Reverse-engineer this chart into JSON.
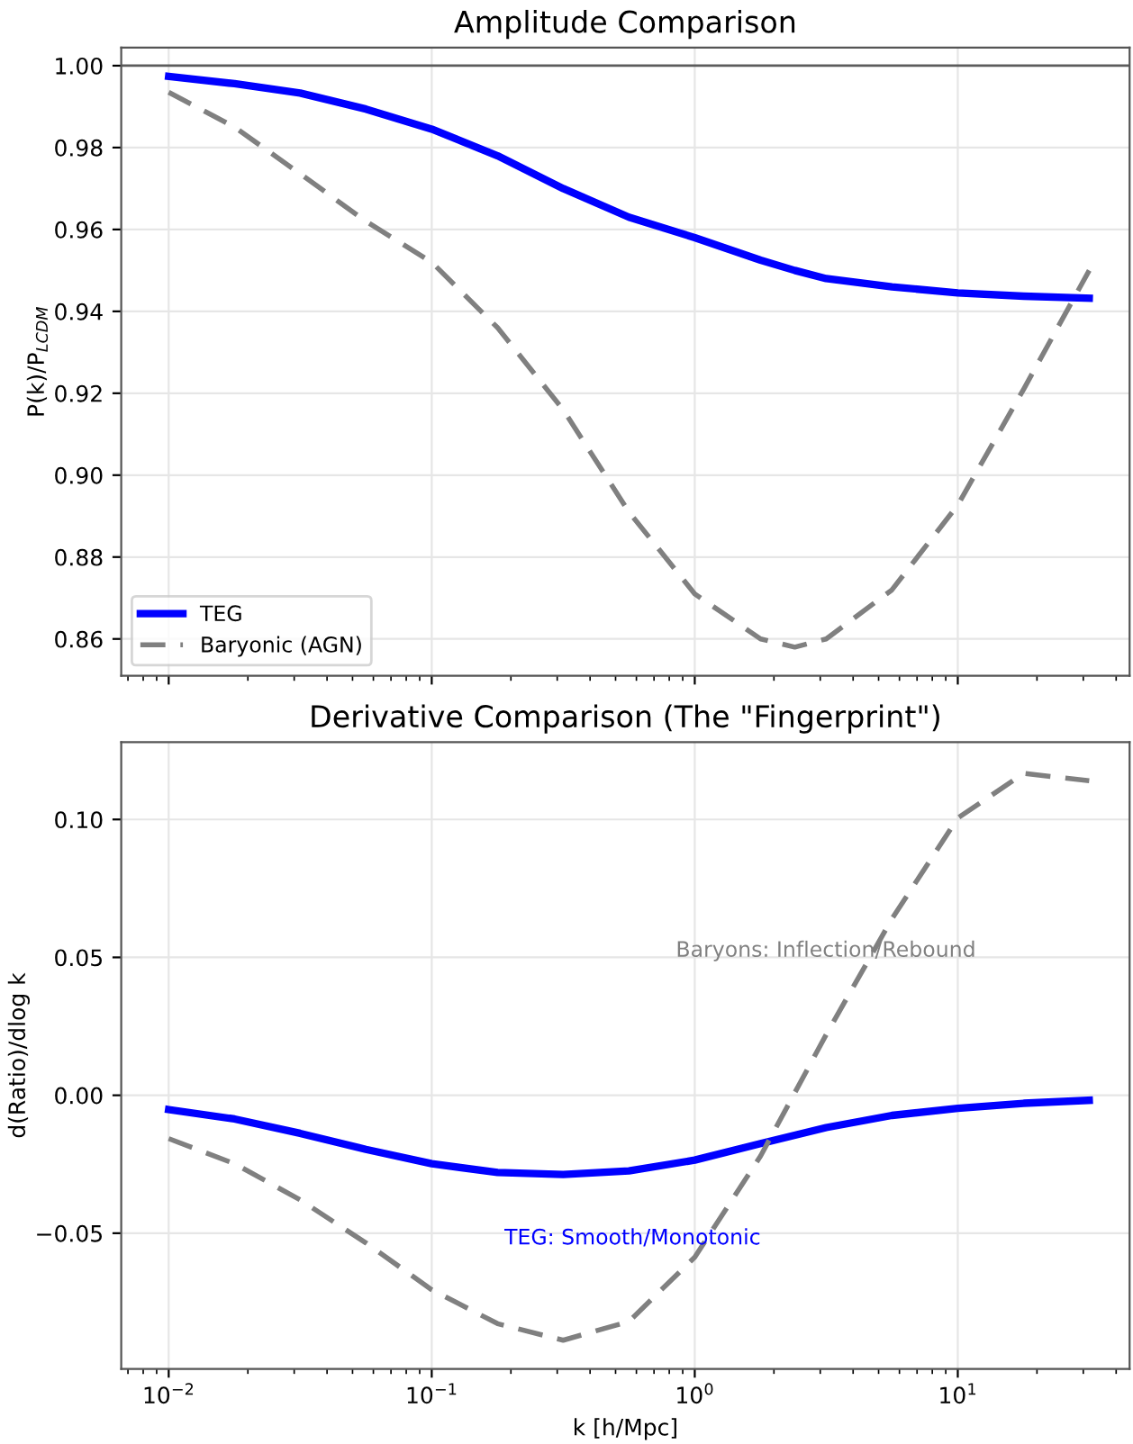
{
  "chart_data": [
    {
      "type": "line",
      "title": "Amplitude Comparison",
      "ylabel": "P(k)/P$_{LCDM}$",
      "x": [
        0.01,
        0.0178,
        0.0316,
        0.0562,
        0.1,
        0.178,
        0.316,
        0.562,
        1.0,
        1.78,
        2.4,
        3.16,
        5.62,
        10.0,
        17.8,
        31.6
      ],
      "series": [
        {
          "name": "TEG",
          "color": "#0000ff",
          "line_style": "solid",
          "values": [
            0.9974,
            0.9956,
            0.9933,
            0.9894,
            0.9845,
            0.978,
            0.97,
            0.963,
            0.958,
            0.9525,
            0.95,
            0.948,
            0.946,
            0.9445,
            0.9437,
            0.9432
          ]
        },
        {
          "name": "Baryonic (AGN)",
          "color": "#808080",
          "line_style": "dashed",
          "values": [
            0.9935,
            0.985,
            0.9736,
            0.962,
            0.952,
            0.936,
            0.916,
            0.891,
            0.871,
            0.86,
            0.858,
            0.86,
            0.872,
            0.8927,
            0.921,
            0.95
          ]
        }
      ],
      "xlim": [
        0.0066,
        45
      ],
      "ylim": [
        0.851,
        1.0044
      ],
      "yticks": [
        {
          "value": 0.86,
          "label": "0.86"
        },
        {
          "value": 0.88,
          "label": "0.88"
        },
        {
          "value": 0.9,
          "label": "0.90"
        },
        {
          "value": 0.92,
          "label": "0.92"
        },
        {
          "value": 0.94,
          "label": "0.94"
        },
        {
          "value": 0.96,
          "label": "0.96"
        },
        {
          "value": 0.98,
          "label": "0.98"
        },
        {
          "value": 1.0,
          "label": "1.00"
        }
      ],
      "xticks": [
        {
          "value": 0.01,
          "label": null
        },
        {
          "value": 0.1,
          "label": null
        },
        {
          "value": 1,
          "label": null
        },
        {
          "value": 10,
          "label": null
        }
      ],
      "ref_lines": [
        {
          "axis": "y",
          "value": 1.0,
          "color": "#000000",
          "line_style": "solid"
        }
      ],
      "log": "x",
      "grid": true,
      "legend": "bottom left",
      "tick_labels": "y"
    },
    {
      "type": "line",
      "title": "Derivative Comparison (The \"Fingerprint\")",
      "xlabel": "k [h/Mpc]",
      "ylabel": "d(Ratio)/dlog k",
      "x": [
        0.01,
        0.0178,
        0.0316,
        0.0562,
        0.1,
        0.178,
        0.316,
        0.562,
        1.0,
        1.78,
        3.16,
        5.62,
        10.0,
        17.8,
        31.6
      ],
      "series": [
        {
          "color": "#0000ff",
          "line_style": "solid",
          "values": [
            -0.0052,
            -0.0086,
            -0.0138,
            -0.0196,
            -0.0248,
            -0.028,
            -0.0287,
            -0.0274,
            -0.0235,
            -0.0175,
            -0.0117,
            -0.0073,
            -0.0047,
            -0.0029,
            -0.0018
          ]
        },
        {
          "color": "#808080",
          "line_style": "dashed",
          "values": [
            -0.0157,
            -0.0248,
            -0.0379,
            -0.0535,
            -0.0705,
            -0.0828,
            -0.0888,
            -0.082,
            -0.0587,
            -0.022,
            0.022,
            0.064,
            0.1005,
            0.1167,
            0.114
          ]
        }
      ],
      "xlim": [
        0.0066,
        45
      ],
      "ylim": [
        -0.0992,
        0.128
      ],
      "yticks": [
        {
          "value": -0.05,
          "label": "−0.05"
        },
        {
          "value": 0.0,
          "label": "0.00"
        },
        {
          "value": 0.05,
          "label": "0.05"
        },
        {
          "value": 0.1,
          "label": "0.10"
        }
      ],
      "xticks": [
        {
          "value": 0.01,
          "label": "10$^{−2}$"
        },
        {
          "value": 0.1,
          "label": "10$^{−1}$"
        },
        {
          "value": 1,
          "label": "10$^{0}$"
        },
        {
          "value": 10,
          "label": "10$^{1}$"
        }
      ],
      "annotations": [
        "Baryons: Inflection/Rebound",
        "TEG: Smooth/Monotonic"
      ],
      "log": "x",
      "grid": true
    }
  ]
}
